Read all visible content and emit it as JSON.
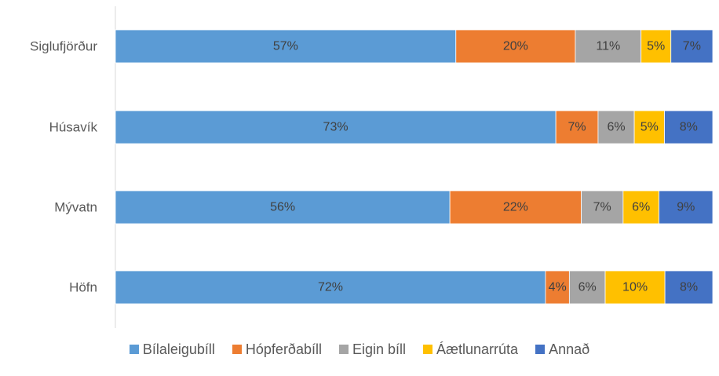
{
  "chart_data": {
    "type": "bar",
    "orientation": "horizontal",
    "stacked": true,
    "percent": true,
    "title": "",
    "xlabel": "",
    "ylabel": "",
    "xlim": [
      0,
      100
    ],
    "grid": false,
    "legend_position": "bottom",
    "categories": [
      "Siglufjörður",
      "Húsavík",
      "Mývatn",
      "Höfn"
    ],
    "series": [
      {
        "name": "Bílaleigubíll",
        "color": "#5B9BD5",
        "values": [
          57,
          73,
          56,
          72
        ],
        "labels": [
          "57%",
          "73%",
          "56%",
          "72%"
        ]
      },
      {
        "name": "Hópferðabíll",
        "color": "#ED7D31",
        "values": [
          20,
          7,
          22,
          4
        ],
        "labels": [
          "20%",
          "7%",
          "22%",
          "4%"
        ]
      },
      {
        "name": "Eigin bíll",
        "color": "#A5A5A5",
        "values": [
          11,
          6,
          7,
          6
        ],
        "labels": [
          "11%",
          "6%",
          "7%",
          "6%"
        ]
      },
      {
        "name": "Áætlunarrúta",
        "color": "#FFC000",
        "values": [
          5,
          5,
          6,
          10
        ],
        "labels": [
          "5%",
          "5%",
          "6%",
          "10%"
        ]
      },
      {
        "name": "Annað",
        "color": "#4472C4",
        "values": [
          7,
          8,
          9,
          8
        ],
        "labels": [
          "7%",
          "8%",
          "9%",
          "8%"
        ]
      }
    ]
  }
}
